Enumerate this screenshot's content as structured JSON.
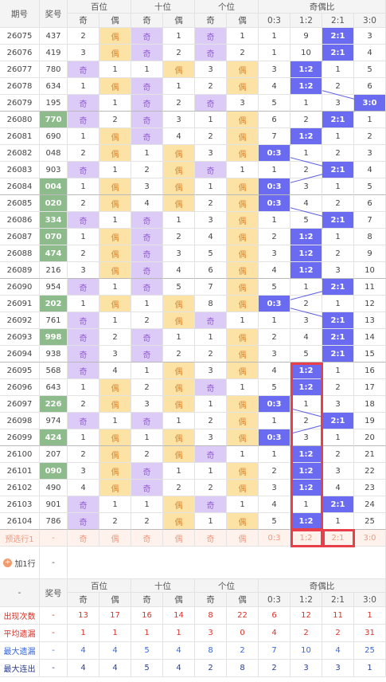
{
  "header": {
    "issue": "期号",
    "number": "奖号",
    "groups": [
      "百位",
      "十位",
      "个位",
      "奇偶比"
    ],
    "sub": [
      "奇",
      "偶",
      "奇",
      "偶",
      "奇",
      "偶",
      "0:3",
      "1:2",
      "2:1",
      "3:0"
    ]
  },
  "rows": [
    {
      "issue": "26075",
      "number": "437",
      "cells": [
        2,
        "偶",
        "奇",
        1,
        "奇",
        1,
        1,
        9,
        "2:1",
        3
      ]
    },
    {
      "issue": "26076",
      "number": "419",
      "cells": [
        3,
        "偶",
        "奇",
        2,
        "奇",
        2,
        1,
        10,
        "2:1",
        4
      ]
    },
    {
      "issue": "26077",
      "number": "780",
      "cells": [
        "奇",
        1,
        1,
        "偶",
        3,
        "偶",
        3,
        "1:2",
        1,
        5
      ]
    },
    {
      "issue": "26078",
      "number": "634",
      "cells": [
        1,
        "偶",
        "奇",
        1,
        2,
        "偶",
        4,
        "1:2",
        2,
        6
      ]
    },
    {
      "issue": "26079",
      "number": "195",
      "cells": [
        "奇",
        1,
        "奇",
        2,
        "奇",
        3,
        5,
        1,
        3,
        "3:0"
      ]
    },
    {
      "issue": "26080",
      "number": "770",
      "highlight": true,
      "cells": [
        "奇",
        2,
        "奇",
        3,
        1,
        "偶",
        6,
        2,
        "2:1",
        1
      ]
    },
    {
      "issue": "26081",
      "number": "690",
      "cells": [
        1,
        "偶",
        "奇",
        4,
        2,
        "偶",
        7,
        "1:2",
        1,
        2
      ]
    },
    {
      "issue": "26082",
      "number": "048",
      "cells": [
        2,
        "偶",
        1,
        "偶",
        3,
        "偶",
        "0:3",
        1,
        2,
        3
      ]
    },
    {
      "issue": "26083",
      "number": "903",
      "cells": [
        "奇",
        1,
        2,
        "偶",
        "奇",
        1,
        1,
        2,
        "2:1",
        4
      ]
    },
    {
      "issue": "26084",
      "number": "004",
      "highlight": true,
      "cells": [
        1,
        "偶",
        3,
        "偶",
        1,
        "偶",
        "0:3",
        3,
        1,
        5
      ]
    },
    {
      "issue": "26085",
      "number": "020",
      "highlight": true,
      "cells": [
        2,
        "偶",
        4,
        "偶",
        2,
        "偶",
        "0:3",
        4,
        2,
        6
      ]
    },
    {
      "issue": "26086",
      "number": "334",
      "highlight": true,
      "cells": [
        "奇",
        1,
        "奇",
        1,
        3,
        "偶",
        1,
        5,
        "2:1",
        7
      ]
    },
    {
      "issue": "26087",
      "number": "070",
      "highlight": true,
      "cells": [
        1,
        "偶",
        "奇",
        2,
        4,
        "偶",
        2,
        "1:2",
        1,
        8
      ]
    },
    {
      "issue": "26088",
      "number": "474",
      "highlight": true,
      "cells": [
        2,
        "偶",
        "奇",
        3,
        5,
        "偶",
        3,
        "1:2",
        2,
        9
      ]
    },
    {
      "issue": "26089",
      "number": "216",
      "cells": [
        3,
        "偶",
        "奇",
        4,
        6,
        "偶",
        4,
        "1:2",
        3,
        10
      ]
    },
    {
      "issue": "26090",
      "number": "954",
      "cells": [
        "奇",
        1,
        "奇",
        5,
        7,
        "偶",
        5,
        1,
        "2:1",
        11
      ]
    },
    {
      "issue": "26091",
      "number": "202",
      "highlight": true,
      "cells": [
        1,
        "偶",
        1,
        "偶",
        8,
        "偶",
        "0:3",
        2,
        1,
        12
      ]
    },
    {
      "issue": "26092",
      "number": "761",
      "cells": [
        "奇",
        1,
        2,
        "偶",
        "奇",
        1,
        1,
        3,
        "2:1",
        13
      ]
    },
    {
      "issue": "26093",
      "number": "998",
      "highlight": true,
      "cells": [
        "奇",
        2,
        "奇",
        1,
        1,
        "偶",
        2,
        4,
        "2:1",
        14
      ]
    },
    {
      "issue": "26094",
      "number": "938",
      "cells": [
        "奇",
        3,
        "奇",
        2,
        2,
        "偶",
        3,
        5,
        "2:1",
        15
      ]
    },
    {
      "issue": "26095",
      "number": "568",
      "cells": [
        "奇",
        4,
        1,
        "偶",
        3,
        "偶",
        4,
        "1:2",
        1,
        16
      ]
    },
    {
      "issue": "26096",
      "number": "643",
      "cells": [
        1,
        "偶",
        2,
        "偶",
        "奇",
        1,
        5,
        "1:2",
        2,
        17
      ]
    },
    {
      "issue": "26097",
      "number": "226",
      "highlight": true,
      "cells": [
        2,
        "偶",
        3,
        "偶",
        1,
        "偶",
        "0:3",
        1,
        3,
        18
      ]
    },
    {
      "issue": "26098",
      "number": "974",
      "cells": [
        "奇",
        1,
        "奇",
        1,
        2,
        "偶",
        1,
        2,
        "2:1",
        19
      ]
    },
    {
      "issue": "26099",
      "number": "424",
      "highlight": true,
      "cells": [
        1,
        "偶",
        1,
        "偶",
        3,
        "偶",
        "0:3",
        3,
        1,
        20
      ]
    },
    {
      "issue": "26100",
      "number": "207",
      "cells": [
        2,
        "偶",
        2,
        "偶",
        "奇",
        1,
        1,
        "1:2",
        2,
        21
      ]
    },
    {
      "issue": "26101",
      "number": "090",
      "highlight": true,
      "cells": [
        3,
        "偶",
        "奇",
        1,
        1,
        "偶",
        2,
        "1:2",
        3,
        22
      ]
    },
    {
      "issue": "26102",
      "number": "490",
      "cells": [
        4,
        "偶",
        "奇",
        2,
        2,
        "偶",
        3,
        "1:2",
        4,
        23
      ]
    },
    {
      "issue": "26103",
      "number": "901",
      "cells": [
        "奇",
        1,
        1,
        "偶",
        "奇",
        1,
        4,
        1,
        "2:1",
        24
      ]
    },
    {
      "issue": "26104",
      "number": "786",
      "cells": [
        "奇",
        2,
        2,
        "偶",
        1,
        "偶",
        5,
        "1:2",
        1,
        25
      ]
    }
  ],
  "preview": {
    "label": "预选行1",
    "number": "-",
    "cells": [
      "奇",
      "偶",
      "奇",
      "偶",
      "奇",
      "偶",
      "0:3",
      "1:2",
      "2:1",
      "3:0"
    ]
  },
  "add_row": {
    "label": "加1行",
    "number": "-"
  },
  "footer_header": {
    "issue": "-",
    "number": "奖号",
    "groups": [
      "百位",
      "十位",
      "个位",
      "奇偶比"
    ],
    "sub": [
      "奇",
      "偶",
      "奇",
      "偶",
      "奇",
      "偶",
      "0:3",
      "1:2",
      "2:1",
      "3:0"
    ]
  },
  "stats": [
    {
      "label": "出现次数",
      "color": "#d9342b",
      "values": [
        "-",
        13,
        17,
        16,
        14,
        8,
        22,
        6,
        12,
        11,
        1
      ]
    },
    {
      "label": "平均遗漏",
      "color": "#d9342b",
      "values": [
        "-",
        1,
        1,
        1,
        1,
        3,
        0,
        4,
        2,
        2,
        31
      ]
    },
    {
      "label": "最大遗漏",
      "color": "#3a67d8",
      "values": [
        "-",
        4,
        4,
        5,
        4,
        8,
        2,
        7,
        10,
        4,
        25
      ]
    },
    {
      "label": "最大连出",
      "color": "#2b3f8f",
      "values": [
        "-",
        4,
        4,
        5,
        4,
        2,
        8,
        2,
        3,
        3,
        1
      ]
    }
  ]
}
